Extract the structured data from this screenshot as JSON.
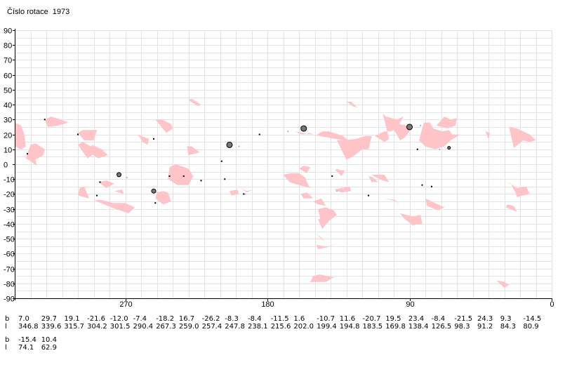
{
  "title": "Číslo rotace  1973",
  "colors": {
    "region": "#ffc4c8",
    "grid": "#e3e3e3",
    "axis": "#000000"
  },
  "chart_data": {
    "type": "scatter",
    "title": "Číslo rotace  1973",
    "xlim": [
      340,
      0
    ],
    "ylim": [
      -90,
      90
    ],
    "x_ticks": [
      270,
      180,
      90,
      0
    ],
    "y_ticks": [
      90,
      80,
      70,
      60,
      50,
      40,
      30,
      20,
      10,
      0,
      -10,
      -20,
      -30,
      -40,
      -50,
      -60,
      -70,
      -80,
      -90
    ],
    "grid": true,
    "regions": [
      [
        [
          340,
          28
        ],
        [
          336,
          26
        ],
        [
          334,
          20
        ],
        [
          333,
          12
        ],
        [
          336,
          10
        ],
        [
          340,
          12
        ]
      ],
      [
        [
          330,
          13
        ],
        [
          327,
          14
        ],
        [
          321,
          10
        ],
        [
          322,
          6
        ],
        [
          327,
          3
        ],
        [
          326,
          -1
        ],
        [
          330,
          2
        ],
        [
          333,
          4
        ]
      ],
      [
        [
          321,
          30
        ],
        [
          317,
          32
        ],
        [
          311,
          30
        ],
        [
          306,
          28
        ],
        [
          312,
          26
        ],
        [
          319,
          25
        ]
      ],
      [
        [
          291,
          13
        ],
        [
          285,
          10
        ],
        [
          281,
          6
        ],
        [
          287,
          4
        ],
        [
          293,
          8
        ]
      ],
      [
        [
          300,
          21
        ],
        [
          297,
          23
        ],
        [
          288,
          23
        ],
        [
          290,
          16
        ],
        [
          296,
          16
        ]
      ],
      [
        [
          300,
          13
        ],
        [
          297,
          15
        ],
        [
          290,
          11
        ],
        [
          291,
          6
        ],
        [
          294,
          4
        ]
      ],
      [
        [
          262,
          20
        ],
        [
          260,
          19
        ],
        [
          255,
          17
        ],
        [
          256,
          13
        ],
        [
          259,
          15
        ]
      ],
      [
        [
          251,
          30
        ],
        [
          247,
          30
        ],
        [
          241,
          27
        ],
        [
          240,
          24
        ],
        [
          244,
          21
        ]
      ],
      [
        [
          242,
          -2
        ],
        [
          238,
          0
        ],
        [
          230,
          -3
        ],
        [
          227,
          -8
        ],
        [
          230,
          -14
        ],
        [
          237,
          -14
        ],
        [
          243,
          -10
        ]
      ],
      [
        [
          231,
          12
        ],
        [
          228,
          12
        ],
        [
          223,
          8
        ],
        [
          230,
          6
        ]
      ],
      [
        [
          228,
          44
        ],
        [
          222,
          40
        ],
        [
          224,
          39
        ],
        [
          230,
          43
        ]
      ],
      [
        [
          299,
          -16
        ],
        [
          296,
          -15
        ],
        [
          293,
          -23
        ],
        [
          300,
          -21
        ]
      ],
      [
        [
          287,
          -12
        ],
        [
          282,
          -11
        ],
        [
          277,
          -13
        ],
        [
          282,
          -16
        ]
      ],
      [
        [
          277,
          -18
        ],
        [
          272,
          -17
        ],
        [
          271,
          -20
        ]
      ],
      [
        [
          290,
          -24
        ],
        [
          285,
          -24
        ],
        [
          278,
          -26
        ],
        [
          270,
          -26
        ],
        [
          264,
          -29
        ],
        [
          268,
          -33
        ],
        [
          279,
          -29
        ]
      ],
      [
        [
          250,
          -19
        ],
        [
          246,
          -18
        ],
        [
          243,
          -19
        ],
        [
          241,
          -25
        ],
        [
          246,
          -27
        ],
        [
          251,
          -23
        ]
      ],
      [
        [
          252,
          -19
        ],
        [
          249,
          -19
        ]
      ],
      [
        [
          204,
          -18
        ],
        [
          199,
          -17
        ],
        [
          198,
          -20
        ],
        [
          203,
          -21
        ]
      ],
      [
        [
          197,
          -16
        ],
        [
          193,
          -18
        ],
        [
          189,
          -17
        ],
        [
          193,
          -19
        ]
      ],
      [
        [
          205,
          -8
        ],
        [
          203,
          -10
        ],
        [
          201,
          -12
        ]
      ],
      [
        [
          170,
          -7
        ],
        [
          165,
          -6
        ],
        [
          160,
          -6
        ],
        [
          156,
          -9
        ],
        [
          155,
          -12
        ],
        [
          153,
          -16
        ],
        [
          160,
          -14
        ],
        [
          166,
          -12
        ]
      ],
      [
        [
          138,
          -17
        ],
        [
          133,
          -19
        ],
        [
          127,
          -18
        ],
        [
          128,
          -15
        ]
      ],
      [
        [
          116,
          -8
        ],
        [
          113,
          -9
        ],
        [
          110,
          -12
        ],
        [
          114,
          -12
        ]
      ],
      [
        [
          159,
          -20
        ],
        [
          155,
          -19
        ],
        [
          151,
          -23
        ],
        [
          157,
          -23
        ]
      ],
      [
        [
          151,
          -25
        ],
        [
          148,
          -27
        ],
        [
          143,
          -28
        ],
        [
          146,
          -23
        ]
      ],
      [
        [
          148,
          -30
        ],
        [
          143,
          -29
        ],
        [
          138,
          -31
        ],
        [
          136,
          -34
        ],
        [
          141,
          -38
        ],
        [
          145,
          -43
        ]
      ],
      [
        [
          148,
          -37
        ],
        [
          143,
          -36
        ],
        [
          145,
          -44
        ]
      ],
      [
        [
          149,
          -47
        ],
        [
          146,
          -49
        ],
        [
          144,
          -52
        ],
        [
          146,
          -50
        ]
      ],
      [
        [
          149,
          -54
        ],
        [
          145,
          -55
        ],
        [
          140,
          -55
        ],
        [
          136,
          -53
        ],
        [
          143,
          -56
        ],
        [
          148,
          -57
        ]
      ],
      [
        [
          151,
          -75
        ],
        [
          147,
          -74
        ],
        [
          138,
          -76
        ],
        [
          143,
          -79
        ],
        [
          153,
          -79
        ]
      ],
      [
        [
          130,
          42
        ],
        [
          127,
          42
        ],
        [
          123,
          38
        ],
        [
          126,
          39
        ]
      ],
      [
        [
          136,
          16
        ],
        [
          132,
          16
        ],
        [
          124,
          17
        ],
        [
          118,
          19
        ],
        [
          114,
          19
        ],
        [
          116,
          10
        ],
        [
          120,
          10
        ],
        [
          126,
          5
        ],
        [
          130,
          3
        ]
      ],
      [
        [
          136,
          -3
        ],
        [
          134,
          -4
        ],
        [
          131,
          -4
        ],
        [
          133,
          -8
        ],
        [
          137,
          -4
        ]
      ],
      [
        [
          160,
          -3
        ],
        [
          157,
          -1
        ],
        [
          153,
          -2
        ],
        [
          155,
          -6
        ]
      ],
      [
        [
          163,
          22
        ],
        [
          158,
          20
        ],
        [
          153,
          21
        ],
        [
          150,
          19
        ],
        [
          147,
          21
        ],
        [
          145,
          22
        ],
        [
          141,
          22
        ],
        [
          132,
          19
        ],
        [
          126,
          13
        ],
        [
          132,
          16
        ]
      ],
      [
        [
          101,
          25
        ],
        [
          97,
          27
        ],
        [
          92,
          26
        ],
        [
          90,
          22
        ],
        [
          93,
          18
        ],
        [
          96,
          16
        ]
      ],
      [
        [
          107,
          34
        ],
        [
          105,
          32
        ],
        [
          98,
          30
        ],
        [
          94,
          32
        ],
        [
          98,
          24
        ],
        [
          102,
          22
        ],
        [
          106,
          22
        ],
        [
          112,
          19
        ],
        [
          106,
          15
        ],
        [
          103,
          17
        ]
      ],
      [
        [
          114,
          -7
        ],
        [
          111,
          -9
        ],
        [
          107,
          -11
        ],
        [
          103,
          -12
        ],
        [
          106,
          -7
        ]
      ],
      [
        [
          106,
          -23
        ],
        [
          99,
          -24
        ],
        [
          96,
          -29
        ],
        [
          92,
          -33
        ],
        [
          96,
          -29
        ],
        [
          98,
          -25
        ]
      ],
      [
        [
          80,
          -23
        ],
        [
          72,
          -27
        ],
        [
          68,
          -29
        ],
        [
          72,
          -31
        ],
        [
          79,
          -28
        ]
      ],
      [
        [
          96,
          -33
        ],
        [
          94,
          -36
        ],
        [
          88,
          -41
        ],
        [
          82,
          -40
        ],
        [
          83,
          -34
        ],
        [
          88,
          -35
        ]
      ],
      [
        [
          81,
          28
        ],
        [
          77,
          28
        ],
        [
          75,
          24
        ],
        [
          69,
          22
        ],
        [
          65,
          23
        ],
        [
          63,
          20
        ],
        [
          58,
          20
        ],
        [
          64,
          16
        ],
        [
          68,
          12
        ],
        [
          74,
          10
        ],
        [
          80,
          12
        ],
        [
          84,
          16
        ]
      ],
      [
        [
          68,
          32
        ],
        [
          64,
          30
        ],
        [
          60,
          31
        ],
        [
          61,
          26
        ],
        [
          66,
          24
        ],
        [
          73,
          26
        ]
      ],
      [
        [
          42,
          22
        ],
        [
          39,
          21
        ],
        [
          40,
          17
        ]
      ],
      [
        [
          27,
          25
        ],
        [
          22,
          24
        ],
        [
          14,
          20
        ],
        [
          10,
          16
        ],
        [
          14,
          15
        ],
        [
          18,
          16
        ],
        [
          24,
          11
        ]
      ],
      [
        [
          28,
          -12
        ],
        [
          26,
          -13
        ],
        [
          23,
          -19
        ],
        [
          22,
          -22
        ],
        [
          14,
          -20
        ],
        [
          16,
          -15
        ],
        [
          22,
          -16
        ]
      ],
      [
        [
          28,
          -27
        ],
        [
          24,
          -28
        ],
        [
          22,
          -32
        ],
        [
          29,
          -29
        ]
      ],
      [
        [
          35,
          -78
        ],
        [
          30,
          -79
        ],
        [
          27,
          -81
        ],
        [
          30,
          -83
        ]
      ]
    ],
    "points": [
      {
        "x": 332,
        "y": 7,
        "r": 1
      },
      {
        "x": 321,
        "y": 30,
        "r": 1
      },
      {
        "x": 300,
        "y": 20,
        "r": 1
      },
      {
        "x": 286,
        "y": -12,
        "r": 1
      },
      {
        "x": 288,
        "y": -21,
        "r": 1
      },
      {
        "x": 274,
        "y": -7,
        "r": 3
      },
      {
        "x": 269,
        "y": -9,
        "r": 1,
        "c": "#8fa0ff"
      },
      {
        "x": 252,
        "y": -18,
        "r": 3
      },
      {
        "x": 252,
        "y": 17,
        "r": 1
      },
      {
        "x": 251,
        "y": -26,
        "r": 1
      },
      {
        "x": 242,
        "y": -8,
        "r": 1
      },
      {
        "x": 233,
        "y": -8,
        "r": 1
      },
      {
        "x": 222,
        "y": -11,
        "r": 1
      },
      {
        "x": 209,
        "y": 2,
        "r": 1
      },
      {
        "x": 207,
        "y": -10,
        "r": 1
      },
      {
        "x": 204,
        "y": 13,
        "r": 4
      },
      {
        "x": 198,
        "y": 12,
        "r": 1,
        "c": "#8fa0ff"
      },
      {
        "x": 195,
        "y": -20,
        "r": 1
      },
      {
        "x": 194,
        "y": -20,
        "r": 1,
        "c": "#8fa0ff"
      },
      {
        "x": 185,
        "y": 20,
        "r": 1
      },
      {
        "x": 167,
        "y": 22,
        "r": 1,
        "c": "#8fa0ff"
      },
      {
        "x": 157,
        "y": 24,
        "r": 4
      },
      {
        "x": 139,
        "y": -8,
        "r": 1
      },
      {
        "x": 136,
        "y": -18,
        "r": 1,
        "c": "#8fa0ff"
      },
      {
        "x": 116,
        "y": -21,
        "r": 1
      },
      {
        "x": 90,
        "y": 25,
        "r": 4
      },
      {
        "x": 85,
        "y": 10,
        "r": 1
      },
      {
        "x": 82,
        "y": -14,
        "r": 1
      },
      {
        "x": 83,
        "y": 26,
        "r": 1,
        "c": "#8fa0ff"
      },
      {
        "x": 76,
        "y": -15,
        "r": 1
      },
      {
        "x": 71,
        "y": 10,
        "r": 1,
        "c": "#8fa0ff"
      },
      {
        "x": 65,
        "y": 11,
        "r": 2
      }
    ],
    "table": {
      "labels": {
        "b": "b",
        "l": "l"
      },
      "rows": [
        {
          "b": [
            "7.0",
            "29.7",
            "19.1",
            "-21.6",
            "-12.0",
            "-7.4",
            "-18.2",
            "16.7",
            "-26.2",
            "-8.3",
            "-8.4",
            "-11.5",
            "1.6",
            "-10.7",
            "11.6",
            "-20.7",
            "19.5",
            "23.4",
            "-8.4",
            "-21.5",
            "24.3",
            "9.3",
            "-14.5"
          ],
          "l": [
            "346.8",
            "339.6",
            "315.7",
            "304.2",
            "301.5",
            "290.4",
            "267.3",
            "259.0",
            "257.4",
            "247.8",
            "238.1",
            "215.6",
            "202.0",
            "199.4",
            "194.8",
            "183.5",
            "169.8",
            "138.4",
            "126.5",
            "98.3",
            "91.2",
            "84.3",
            "80.9"
          ]
        },
        {
          "b": [
            "-15.4",
            "10.4"
          ],
          "l": [
            "74.1",
            "62.9"
          ]
        }
      ]
    }
  }
}
